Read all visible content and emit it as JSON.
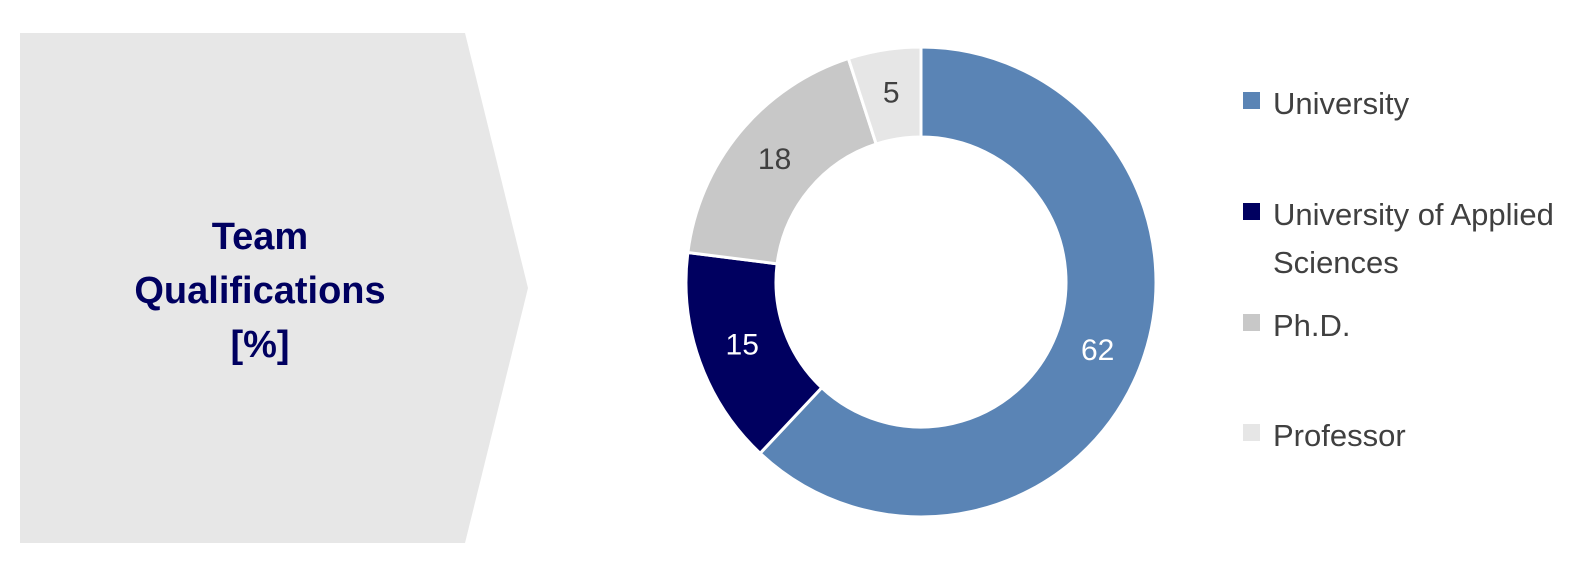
{
  "chart_data": {
    "type": "donut",
    "title": "Team Qualifications [%]",
    "categories": [
      "University",
      "University of Applied Sciences",
      "Ph.D.",
      "Professor"
    ],
    "values": [
      62,
      15,
      18,
      5
    ],
    "colors": [
      "#5a84b5",
      "#000060",
      "#c8c8c8",
      "#e6e6e6"
    ],
    "legend": "right"
  }
}
